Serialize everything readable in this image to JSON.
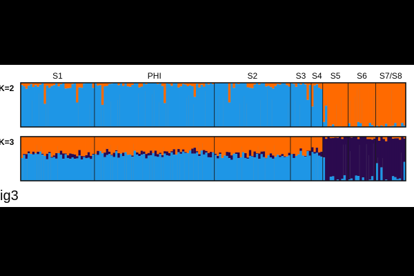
{
  "chart_data": {
    "type": "bar",
    "subtype": "stacked ancestry (STRUCTURE) plot",
    "populations": [
      "S1",
      "PHI",
      "S2",
      "S3",
      "S4",
      "S5",
      "S6",
      "S7/S8"
    ],
    "population_counts": [
      32,
      52,
      33,
      9,
      5,
      11,
      12,
      13
    ],
    "panels": [
      {
        "label": "K=2",
        "clusters": [
          "blue",
          "orange"
        ],
        "mean_membership": {
          "S1": [
            0.95,
            0.05
          ],
          "PHI": [
            0.97,
            0.03
          ],
          "S2": [
            0.95,
            0.05
          ],
          "S3": [
            0.97,
            0.03
          ],
          "S4": [
            0.9,
            0.1
          ],
          "S5": [
            0.05,
            0.95
          ],
          "S6": [
            0.05,
            0.95
          ],
          "S7/S8": [
            0.03,
            0.97
          ]
        }
      },
      {
        "label": "K=3",
        "clusters": [
          "blue",
          "orange",
          "purple"
        ],
        "mean_membership": {
          "S1": [
            0.55,
            0.4,
            0.05
          ],
          "PHI": [
            0.6,
            0.35,
            0.05
          ],
          "S2": [
            0.55,
            0.4,
            0.05
          ],
          "S3": [
            0.6,
            0.35,
            0.05
          ],
          "S4": [
            0.6,
            0.3,
            0.1
          ],
          "S5": [
            0.05,
            0.02,
            0.93
          ],
          "S6": [
            0.04,
            0.02,
            0.94
          ],
          "S7/S8": [
            0.03,
            0.02,
            0.95
          ]
        }
      }
    ],
    "colors": {
      "blue": "#1e96e6",
      "orange": "#ff6a00",
      "purple": "#2b0a4e",
      "gray": "#888888"
    }
  },
  "caption": "ig3"
}
